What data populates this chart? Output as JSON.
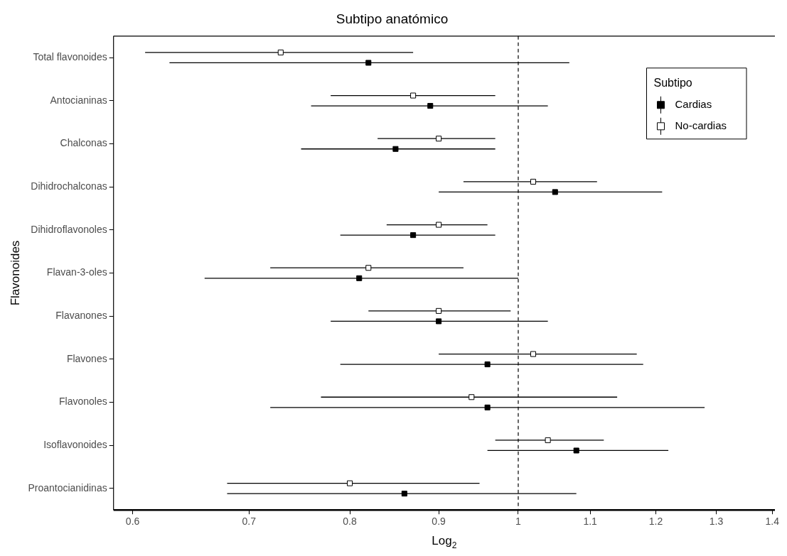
{
  "chart_data": {
    "type": "scatter",
    "orientation": "horizontal",
    "title": "Subtipo anatómico",
    "xlabel": "Log$_{2}$",
    "ylabel": "Flavonoides",
    "legend_title": "Subtipo",
    "legend": "top right",
    "marker": "square",
    "log": "x",
    "grid": false,
    "categories": [
      "Total flavonoides",
      "Antocianinas",
      "Chalconas",
      "Dihidrochalconas",
      "Dihidroflavonoles",
      "Flavan-3-oles",
      "Flavanones",
      "Flavones",
      "Flavonoles",
      "Isoflavonoides",
      "Proantocianidinas"
    ],
    "xlim": [
      0.585,
      1.405
    ],
    "xticks": [
      0.6,
      0.7,
      0.8,
      0.9,
      1,
      1.1,
      1.2,
      1.3,
      1.4
    ],
    "ref_lines": [
      {
        "axis": "x",
        "value": 1,
        "line_style": "dashed",
        "color": "#000000"
      }
    ],
    "series": [
      {
        "name": "No-cardias",
        "color": "#ffffff",
        "values": [
          0.73,
          0.87,
          0.9,
          1.02,
          0.9,
          0.82,
          0.9,
          1.02,
          0.94,
          1.04,
          0.8
        ],
        "errors": [
          [
            0.61,
            0.87
          ],
          [
            0.78,
            0.97
          ],
          [
            0.83,
            0.97
          ],
          [
            0.93,
            1.11
          ],
          [
            0.84,
            0.96
          ],
          [
            0.72,
            0.93
          ],
          [
            0.82,
            0.99
          ],
          [
            0.9,
            1.17
          ],
          [
            0.77,
            1.14
          ],
          [
            0.97,
            1.12
          ],
          [
            0.68,
            0.95
          ]
        ]
      },
      {
        "name": "Cardias",
        "color": "#000000",
        "values": [
          0.82,
          0.89,
          0.85,
          1.05,
          0.87,
          0.81,
          0.9,
          0.96,
          0.96,
          1.08,
          0.86
        ],
        "errors": [
          [
            0.63,
            1.07
          ],
          [
            0.76,
            1.04
          ],
          [
            0.75,
            0.97
          ],
          [
            0.9,
            1.21
          ],
          [
            0.79,
            0.97
          ],
          [
            0.66,
            1.0
          ],
          [
            0.78,
            1.04
          ],
          [
            0.79,
            1.18
          ],
          [
            0.72,
            1.28
          ],
          [
            0.96,
            1.22
          ],
          [
            0.68,
            1.08
          ]
        ]
      }
    ]
  }
}
